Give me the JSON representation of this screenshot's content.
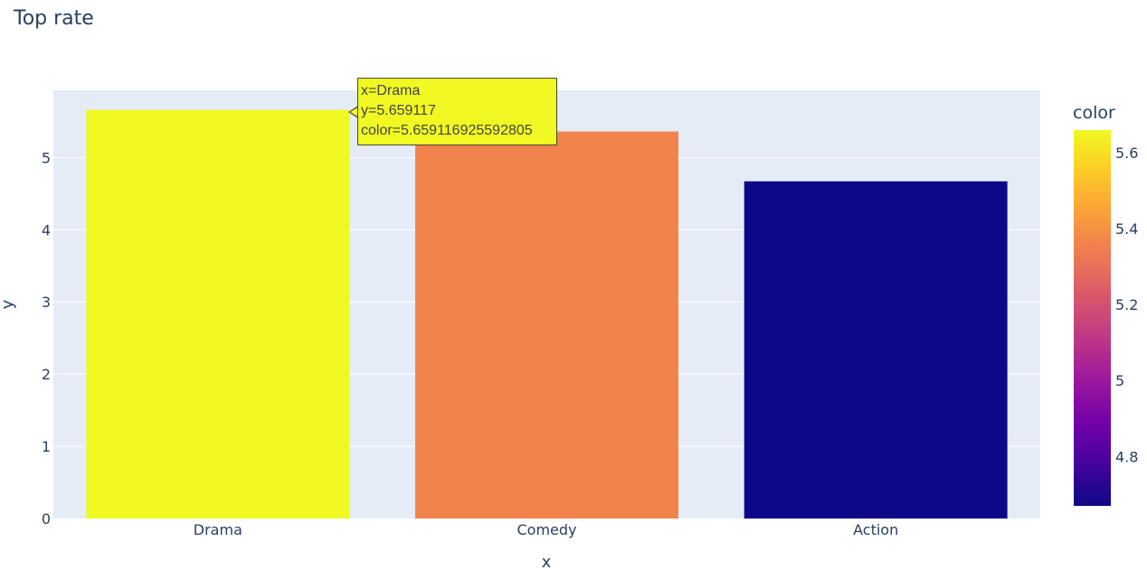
{
  "chart_data": {
    "type": "bar",
    "title": "Top rate",
    "xlabel": "x",
    "ylabel": "y",
    "categories": [
      "Drama",
      "Comedy",
      "Action"
    ],
    "values": [
      5.659117,
      5.36,
      4.67
    ],
    "ylim": [
      0,
      5.93
    ],
    "yticks": [
      "0",
      "1",
      "2",
      "3",
      "4",
      "5"
    ],
    "grid": true,
    "colorscale": "plasma",
    "colorbar": {
      "title": "color",
      "range": [
        4.67,
        5.659117
      ],
      "ticks": [
        "4.8",
        "5",
        "5.2",
        "5.4",
        "5.6"
      ]
    },
    "hover": {
      "lines": [
        "x=Drama",
        "y=5.659117",
        "color=5.659116925592805"
      ]
    }
  }
}
